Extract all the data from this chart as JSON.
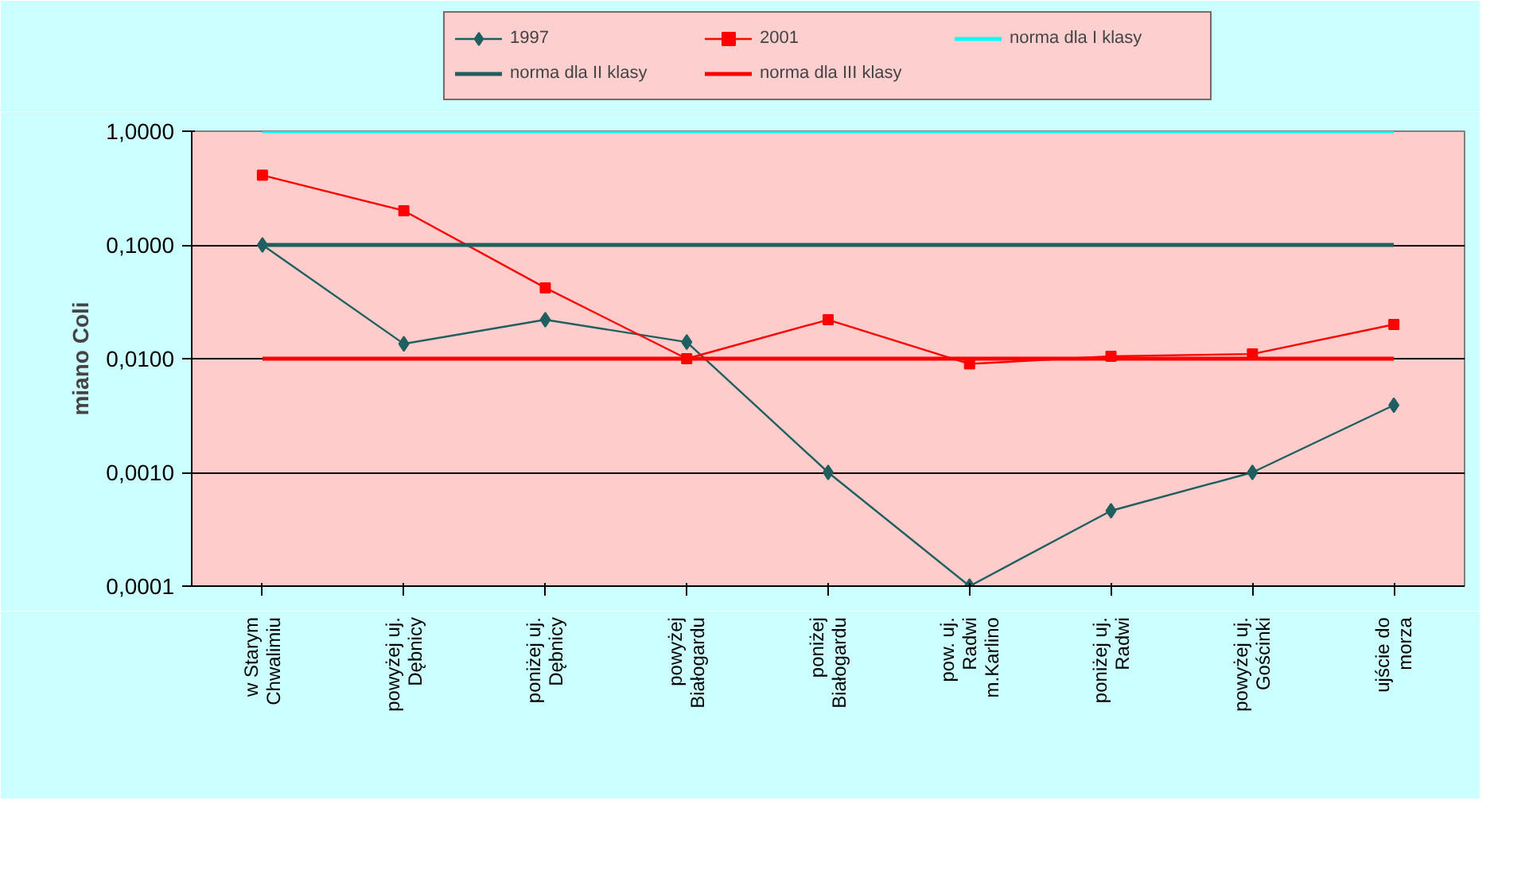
{
  "chart_data": {
    "type": "line",
    "ylabel": "miano Coli",
    "log": "y",
    "grid": "y",
    "legend": "top",
    "categories": [
      "w Starym\nChwalimiu",
      "powyżej uj.\nDębnicy",
      "poniżej uj.\nDębnicy",
      "powyżej\nBiałogardu",
      "poniżej\nBiałogardu",
      "pow. uj.\nRadwi\nm.Karlino",
      "poniżej uj.\nRadwi",
      "powyżej uj.\nGościnki",
      "ujście do\nmorza"
    ],
    "ylim": [
      0.0001,
      1
    ],
    "yticks": [
      {
        "value": 0.0001,
        "label": "0,0001"
      },
      {
        "value": 0.001,
        "label": "0,0010"
      },
      {
        "value": 0.01,
        "label": "0,0100"
      },
      {
        "value": 0.1,
        "label": "0,1000"
      },
      {
        "value": 1,
        "label": "1,0000"
      }
    ],
    "series": [
      {
        "name": "1997",
        "color": "#1f5f5f",
        "marker": "diamond",
        "values": [
          0.1,
          0.0135,
          0.022,
          0.014,
          0.001,
          0.0001,
          0.00046,
          0.001,
          0.0039
        ]
      },
      {
        "name": "2001",
        "color": "#ff0000",
        "marker": "square",
        "values": [
          0.41,
          0.2,
          0.042,
          0.01,
          0.022,
          0.009,
          0.0105,
          0.011,
          0.02
        ]
      },
      {
        "name": "norma dla I klasy",
        "color": "#00ffff",
        "marker": "none",
        "values": [
          1,
          1,
          1,
          1,
          1,
          1,
          1,
          1,
          1
        ]
      },
      {
        "name": "norma dla II klasy",
        "color": "#1f5f5f",
        "marker": "none",
        "values": [
          0.1,
          0.1,
          0.1,
          0.1,
          0.1,
          0.1,
          0.1,
          0.1,
          0.1
        ]
      },
      {
        "name": "norma dla III klasy",
        "color": "#ff0000",
        "marker": "none",
        "values": [
          0.01,
          0.01,
          0.01,
          0.01,
          0.01,
          0.01,
          0.01,
          0.01,
          0.01
        ]
      }
    ]
  }
}
